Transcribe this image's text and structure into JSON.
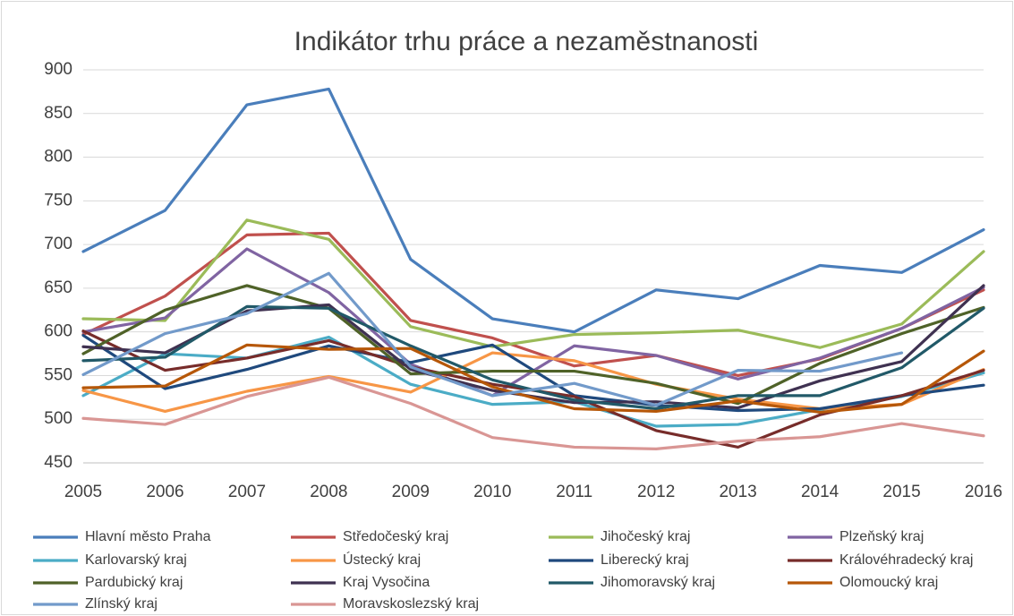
{
  "chart_data": {
    "type": "line",
    "title": "Indikátor trhu práce a nezaměstnanosti",
    "x": [
      2005,
      2006,
      2007,
      2008,
      2009,
      2010,
      2011,
      2012,
      2013,
      2014,
      2015,
      2016
    ],
    "xlim": [
      2005,
      2016
    ],
    "xticks": [
      2005,
      2006,
      2007,
      2008,
      2009,
      2010,
      2011,
      2012,
      2013,
      2014,
      2015,
      2016
    ],
    "ylim": [
      450,
      900
    ],
    "yticks": [
      450,
      500,
      550,
      600,
      650,
      700,
      750,
      800,
      850,
      900
    ],
    "grid": true,
    "legend": "bottom",
    "series": [
      {
        "name": "Hlavní město Praha",
        "color": "#4a7ebb",
        "values": [
          692,
          739,
          860,
          878,
          683,
          615,
          600,
          648,
          638,
          676,
          668,
          717
        ]
      },
      {
        "name": "Středočeský kraj",
        "color": "#c0504d",
        "values": [
          597,
          641,
          711,
          713,
          613,
          593,
          561,
          573,
          550,
          569,
          604,
          648
        ]
      },
      {
        "name": "Jihočeský kraj",
        "color": "#9bbb59",
        "values": [
          615,
          613,
          728,
          706,
          606,
          583,
          597,
          599,
          602,
          582,
          609,
          692
        ]
      },
      {
        "name": "Plzeňský kraj",
        "color": "#8064a2",
        "values": [
          600,
          616,
          695,
          645,
          563,
          527,
          584,
          573,
          546,
          570,
          604,
          651
        ]
      },
      {
        "name": "Karlovarský kraj",
        "color": "#4bacc6",
        "values": [
          527,
          575,
          570,
          594,
          540,
          517,
          520,
          492,
          494,
          511,
          526,
          553
        ]
      },
      {
        "name": "Ústecký kraj",
        "color": "#f79646",
        "values": [
          533,
          509,
          532,
          549,
          531,
          576,
          567,
          540,
          523,
          512,
          517,
          557
        ]
      },
      {
        "name": "Liberecký kraj",
        "color": "#1f497d",
        "values": [
          596,
          535,
          557,
          584,
          565,
          585,
          527,
          516,
          510,
          512,
          527,
          539
        ]
      },
      {
        "name": "Královéhradecký kraj",
        "color": "#772c2a",
        "values": [
          601,
          556,
          570,
          590,
          560,
          540,
          526,
          487,
          468,
          505,
          527,
          556
        ]
      },
      {
        "name": "Pardubický kraj",
        "color": "#4f6228",
        "values": [
          575,
          625,
          653,
          627,
          552,
          555,
          555,
          541,
          518,
          564,
          598,
          628
        ]
      },
      {
        "name": "Kraj Vysočina",
        "color": "#3f3151",
        "values": [
          583,
          576,
          624,
          631,
          557,
          533,
          519,
          520,
          513,
          544,
          566,
          653
        ]
      },
      {
        "name": "Jihomoravský kraj",
        "color": "#215968",
        "values": [
          567,
          571,
          629,
          627,
          584,
          545,
          522,
          512,
          527,
          527,
          559,
          627
        ]
      },
      {
        "name": "Olomoucký kraj",
        "color": "#b65708",
        "values": [
          536,
          538,
          585,
          580,
          581,
          537,
          512,
          509,
          521,
          508,
          517,
          578
        ]
      },
      {
        "name": "Zlínský kraj",
        "color": "#729aca",
        "values": [
          551,
          598,
          621,
          667,
          560,
          527,
          541,
          516,
          556,
          555,
          576,
          null
        ]
      },
      {
        "name": "Moravskoslezský kraj",
        "color": "#d99694",
        "values": [
          501,
          494,
          526,
          548,
          518,
          479,
          468,
          466,
          475,
          480,
          495,
          481
        ]
      }
    ]
  }
}
